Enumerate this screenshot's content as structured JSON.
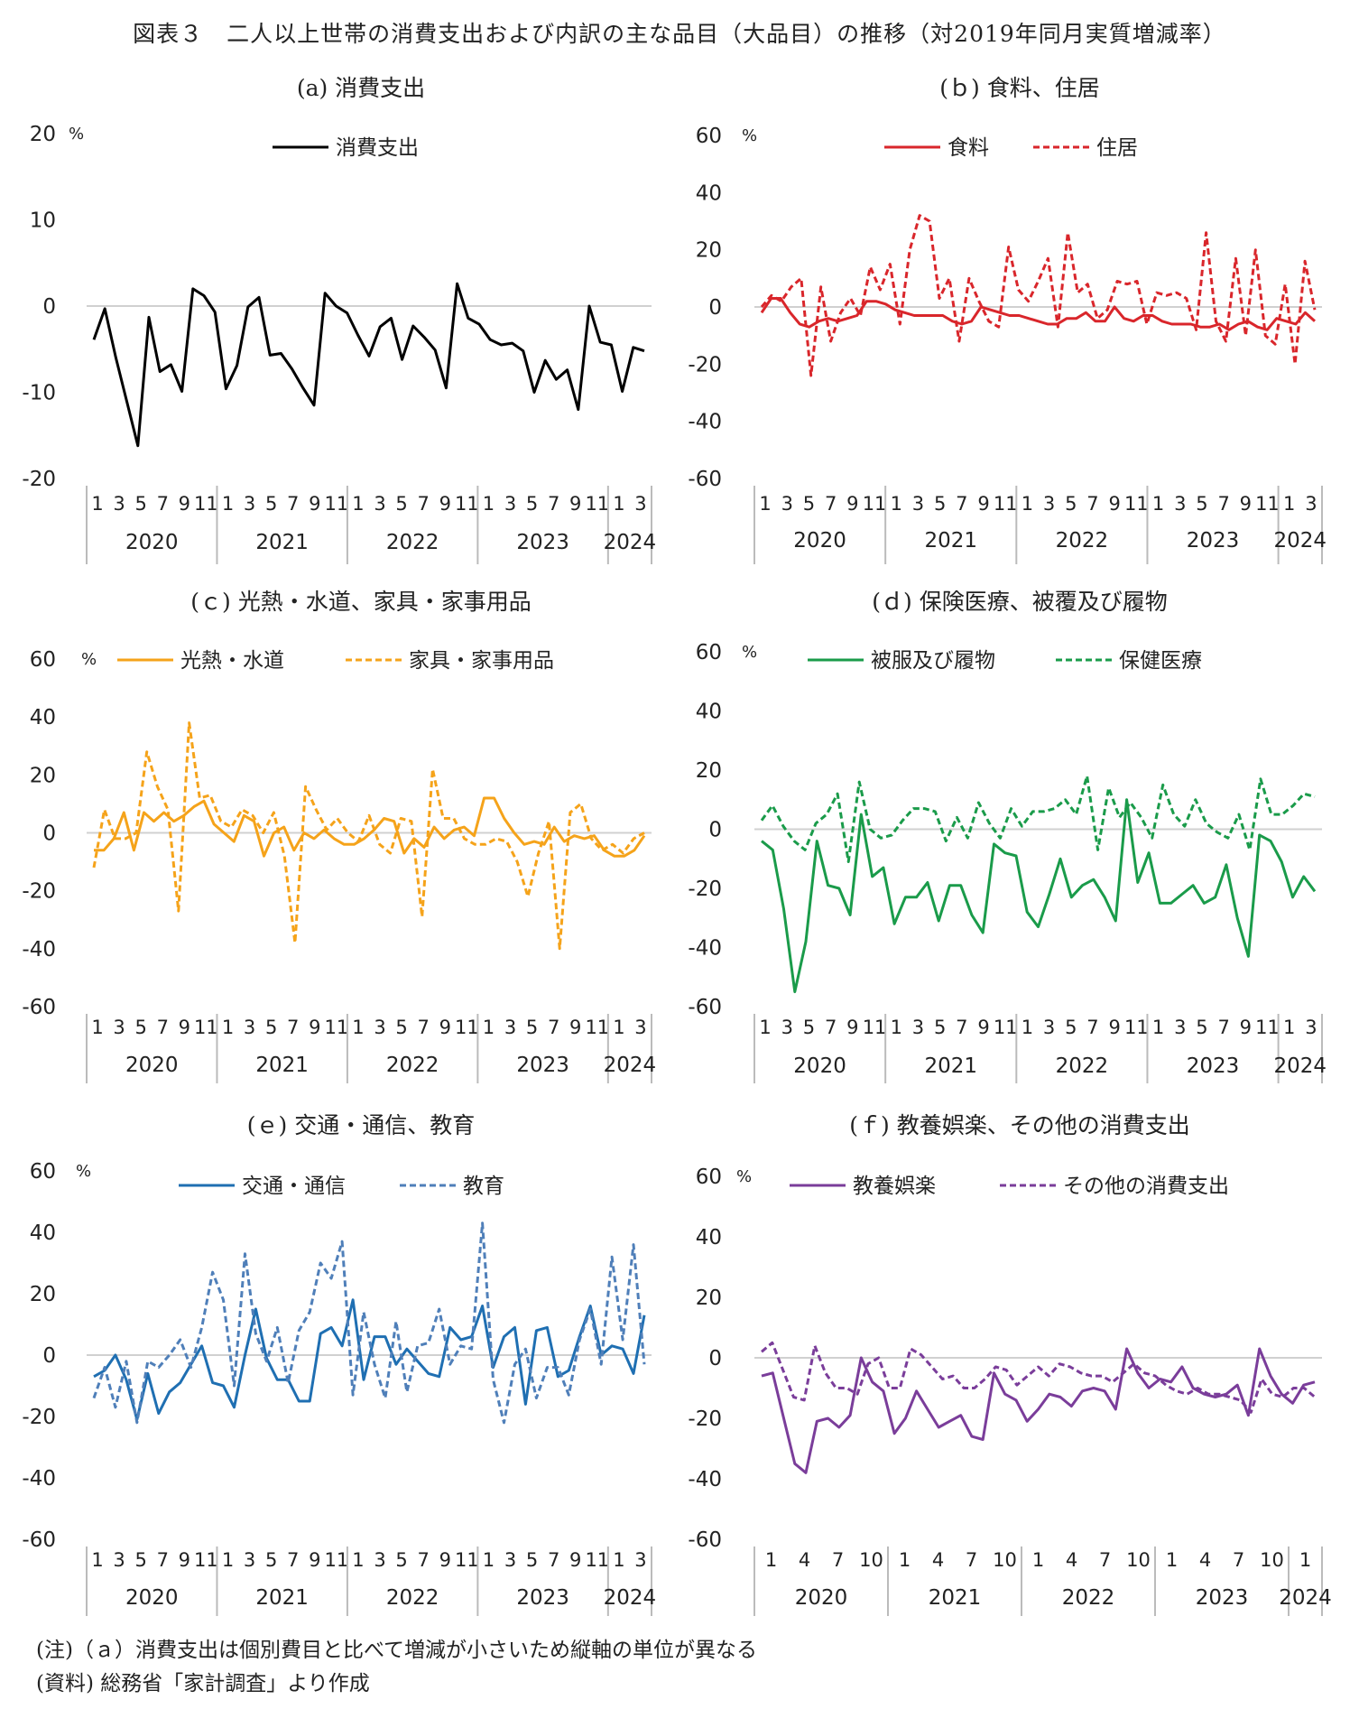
{
  "title": "図表３　二人以上世帯の消費支出および内訳の主な品目（大品目）の推移（対2019年同月実質増減率）",
  "notes": {
    "note1": "(注)（ａ）消費支出は個別費目と比べて増減が小さいため縦軸の単位が異なる",
    "note2": "(資料) 総務省「家計調査」より作成"
  },
  "chart_data": [
    {
      "panel_title": "(a) 消費支出",
      "type": "line",
      "unit": "%",
      "ylim": [
        -20,
        20
      ],
      "yticks": [
        20,
        10,
        0,
        -10,
        -20
      ],
      "xtick_labels": [
        "1",
        "3",
        "5",
        "7",
        "9",
        "11",
        "1",
        "3",
        "5",
        "7",
        "9",
        "11",
        "1",
        "3",
        "5",
        "7",
        "9",
        "11",
        "1",
        "3",
        "5",
        "7",
        "9",
        "11",
        "1",
        "3"
      ],
      "years": [
        "2020",
        "2021",
        "2022",
        "2023",
        "2024"
      ],
      "series": [
        {
          "name": "消費支出",
          "color": "#000000",
          "dash": false,
          "values": [
            -3.9,
            -0.3,
            -6.0,
            -11.1,
            -16.2,
            -1.3,
            -7.6,
            -6.8,
            -9.9,
            2.0,
            1.2,
            -0.7,
            -9.6,
            -6.9,
            -0.1,
            1.0,
            -5.7,
            -5.5,
            -7.3,
            -9.5,
            -11.5,
            1.5,
            0.0,
            -0.8,
            -3.4,
            -5.8,
            -2.4,
            -1.4,
            -6.2,
            -2.3,
            -3.6,
            -5.1,
            -9.5,
            2.6,
            -1.4,
            -2.1,
            -3.9,
            -4.5,
            -4.3,
            -5.2,
            -10.0,
            -6.3,
            -8.5,
            -7.4,
            -12.0,
            0.0,
            -4.2,
            -4.5,
            -9.9,
            -4.8,
            -5.2
          ]
        }
      ]
    },
    {
      "panel_title": "(ｂ) 食料、住居",
      "type": "line",
      "unit": "%",
      "ylim": [
        -60,
        60
      ],
      "yticks": [
        60,
        40,
        20,
        0,
        -20,
        -40,
        -60
      ],
      "xtick_labels": [
        "1",
        "3",
        "5",
        "7",
        "9",
        "11",
        "1",
        "3",
        "5",
        "7",
        "9",
        "11",
        "1",
        "3",
        "5",
        "7",
        "9",
        "11",
        "1",
        "3",
        "5",
        "7",
        "9",
        "11",
        "1",
        "3"
      ],
      "years": [
        "2020",
        "2021",
        "2022",
        "2023",
        "2024"
      ],
      "series": [
        {
          "name": "食料",
          "color": "#d9262b",
          "dash": false,
          "values": [
            -2,
            3,
            3,
            -2,
            -6,
            -7,
            -5,
            -4,
            -5,
            -4,
            -3,
            2,
            2,
            1,
            -1,
            -2,
            -3,
            -3,
            -3,
            -3,
            -5,
            -6,
            -5,
            0,
            -1,
            -2,
            -3,
            -3,
            -4,
            -5,
            -6,
            -6,
            -4,
            -4,
            -2,
            -5,
            -5,
            0,
            -4,
            -5,
            -3,
            -3,
            -5,
            -6,
            -6,
            -6,
            -7,
            -7,
            -6,
            -8,
            -6,
            -5,
            -7,
            -8,
            -4,
            -5,
            -6,
            -2,
            -5
          ]
        },
        {
          "name": "住居",
          "color": "#d9262b",
          "dash": true,
          "values": [
            0,
            4,
            2,
            7,
            10,
            -24,
            7,
            -12,
            -2,
            3,
            -3,
            14,
            6,
            15,
            -6,
            20,
            32,
            30,
            3,
            10,
            -12,
            10,
            2,
            -5,
            -7,
            21,
            6,
            2,
            9,
            17,
            -7,
            26,
            5,
            8,
            -4,
            -1,
            9,
            8,
            9,
            -6,
            5,
            4,
            5,
            3,
            -8,
            26,
            -5,
            -12,
            17,
            -10,
            20,
            -10,
            -13,
            8,
            -20,
            16,
            -1
          ]
        }
      ]
    },
    {
      "panel_title": "(ｃ) 光熱・水道、家具・家事用品",
      "type": "line",
      "unit": "%",
      "ylim": [
        -60,
        60
      ],
      "yticks": [
        60,
        40,
        20,
        0,
        -20,
        -40,
        -60
      ],
      "xtick_labels": [
        "1",
        "3",
        "5",
        "7",
        "9",
        "11",
        "1",
        "3",
        "5",
        "7",
        "9",
        "11",
        "1",
        "3",
        "5",
        "7",
        "9",
        "11",
        "1",
        "3",
        "5",
        "7",
        "9",
        "11",
        "1",
        "3"
      ],
      "years": [
        "2020",
        "2021",
        "2022",
        "2023",
        "2024"
      ],
      "series": [
        {
          "name": "光熱・水道",
          "color": "#f5a31a",
          "dash": false,
          "values": [
            -6,
            -6,
            -2,
            7,
            -6,
            7,
            4,
            7,
            4,
            6,
            9,
            11,
            3,
            0,
            -3,
            6,
            4,
            -8,
            0,
            2,
            -6,
            0,
            -2,
            1,
            -2,
            -4,
            -4,
            -2,
            1,
            5,
            4,
            -7,
            -2,
            -5,
            2,
            -2,
            1,
            2,
            -1,
            12,
            12,
            5,
            0,
            -4,
            -3,
            -4,
            2,
            -3,
            -1,
            -2,
            -1,
            -6,
            -8,
            -8,
            -6,
            -1
          ]
        },
        {
          "name": "家具・家事用品",
          "color": "#f5a31a",
          "dash": true,
          "values": [
            -12,
            8,
            -2,
            -2,
            0,
            28,
            16,
            8,
            -27,
            38,
            12,
            13,
            4,
            2,
            8,
            6,
            0,
            7,
            -8,
            -38,
            16,
            8,
            1,
            5,
            0,
            -3,
            6,
            -4,
            -7,
            5,
            4,
            -29,
            22,
            5,
            5,
            -2,
            -4,
            -4,
            -2,
            -3,
            -10,
            -22,
            -7,
            4,
            -40,
            7,
            10,
            -2,
            -6,
            -4,
            -7,
            -2,
            0
          ]
        }
      ]
    },
    {
      "panel_title": "(ｄ) 保険医療、被覆及び履物",
      "type": "line",
      "unit": "%",
      "ylim": [
        -60,
        60
      ],
      "yticks": [
        60,
        40,
        20,
        0,
        -20,
        -40,
        -60
      ],
      "xtick_labels": [
        "1",
        "3",
        "5",
        "7",
        "9",
        "11",
        "1",
        "3",
        "5",
        "7",
        "9",
        "11",
        "1",
        "3",
        "5",
        "7",
        "9",
        "11",
        "1",
        "3",
        "5",
        "7",
        "9",
        "11",
        "1",
        "3"
      ],
      "years": [
        "2020",
        "2021",
        "2022",
        "2023",
        "2024"
      ],
      "series": [
        {
          "name": "被服及び履物",
          "color": "#1a9b4a",
          "dash": false,
          "values": [
            -4,
            -7,
            -27,
            -55,
            -38,
            -4,
            -19,
            -20,
            -29,
            5,
            -16,
            -13,
            -32,
            -23,
            -23,
            -18,
            -31,
            -19,
            -19,
            -29,
            -35,
            -5,
            -8,
            -9,
            -28,
            -33,
            -22,
            -10,
            -23,
            -19,
            -17,
            -23,
            -31,
            10,
            -18,
            -8,
            -25,
            -25,
            -22,
            -19,
            -25,
            -23,
            -12,
            -30,
            -43,
            -2,
            -4,
            -11,
            -23,
            -16,
            -21
          ]
        },
        {
          "name": "保健医療",
          "color": "#1a9b4a",
          "dash": true,
          "values": [
            3,
            8,
            1,
            -4,
            -7,
            2,
            5,
            12,
            -11,
            16,
            0,
            -3,
            -2,
            3,
            7,
            7,
            6,
            -4,
            4,
            -3,
            9,
            2,
            -3,
            7,
            1,
            6,
            6,
            7,
            10,
            5,
            18,
            -7,
            14,
            4,
            9,
            4,
            -3,
            15,
            5,
            1,
            10,
            2,
            -1,
            -3,
            5,
            -7,
            17,
            5,
            5,
            8,
            12,
            11
          ]
        }
      ]
    },
    {
      "panel_title": "(ｅ) 交通・通信、教育",
      "type": "line",
      "unit": "%",
      "ylim": [
        -60,
        60
      ],
      "yticks": [
        60,
        40,
        20,
        0,
        -20,
        -40,
        -60
      ],
      "xtick_labels": [
        "1",
        "3",
        "5",
        "7",
        "9",
        "11",
        "1",
        "3",
        "5",
        "7",
        "9",
        "11",
        "1",
        "3",
        "5",
        "7",
        "9",
        "11",
        "1",
        "3",
        "5",
        "7",
        "9",
        "11",
        "1",
        "3"
      ],
      "years": [
        "2020",
        "2021",
        "2022",
        "2023",
        "2024"
      ],
      "series": [
        {
          "name": "交通・通信",
          "color": "#1f6fb2",
          "dash": false,
          "values": [
            -7,
            -5,
            0,
            -8,
            -21,
            -6,
            -19,
            -12,
            -9,
            -3,
            3,
            -9,
            -10,
            -17,
            0,
            15,
            -1,
            -8,
            -8,
            -15,
            -15,
            7,
            9,
            3,
            18,
            -8,
            6,
            6,
            -3,
            2,
            -2,
            -6,
            -7,
            9,
            5,
            6,
            16,
            -4,
            6,
            9,
            -16,
            8,
            9,
            -7,
            -5,
            6,
            16,
            0,
            3,
            2,
            -6,
            13
          ]
        },
        {
          "name": "教育",
          "color": "#4f7fb9",
          "dash": true,
          "values": [
            -14,
            -4,
            -17,
            -2,
            -22,
            -2,
            -4,
            0,
            5,
            -4,
            9,
            27,
            18,
            -10,
            33,
            7,
            -2,
            9,
            -9,
            8,
            14,
            30,
            25,
            37,
            -13,
            14,
            -3,
            -14,
            11,
            -12,
            3,
            4,
            15,
            -3,
            3,
            2,
            43,
            -8,
            -22,
            -3,
            2,
            -14,
            -4,
            -4,
            -13,
            5,
            15,
            -3,
            32,
            5,
            36,
            -3
          ]
        }
      ]
    },
    {
      "panel_title": "(ｆ) 教養娯楽、その他の消費支出",
      "type": "line",
      "unit": "%",
      "ylim": [
        -60,
        60
      ],
      "yticks": [
        60,
        40,
        20,
        0,
        -20,
        -40,
        -60
      ],
      "xtick_labels": [
        "1",
        "4",
        "7",
        "10",
        "1",
        "4",
        "7",
        "10",
        "1",
        "4",
        "7",
        "10",
        "1",
        "4",
        "7",
        "10",
        "1"
      ],
      "years": [
        "2020",
        "2021",
        "2022",
        "2023",
        "2024"
      ],
      "series": [
        {
          "name": "教養娯楽",
          "color": "#7a3d9a",
          "dash": false,
          "values": [
            -6,
            -5,
            -20,
            -35,
            -38,
            -21,
            -20,
            -23,
            -19,
            0,
            -8,
            -11,
            -25,
            -20,
            -11,
            -17,
            -23,
            -21,
            -19,
            -26,
            -27,
            -5,
            -12,
            -14,
            -21,
            -17,
            -12,
            -13,
            -16,
            -11,
            -10,
            -11,
            -17,
            3,
            -5,
            -10,
            -7,
            -8,
            -3,
            -10,
            -12,
            -13,
            -12,
            -9,
            -19,
            3,
            -6,
            -12,
            -15,
            -9,
            -8
          ]
        },
        {
          "name": "その他の消費支出",
          "color": "#7a3d9a",
          "dash": true,
          "values": [
            2,
            5,
            -4,
            -13,
            -14,
            4,
            -5,
            -10,
            -10,
            -12,
            -2,
            0,
            -10,
            -10,
            3,
            1,
            -3,
            -7,
            -6,
            -10,
            -10,
            -7,
            -3,
            -4,
            -9,
            -6,
            -3,
            -6,
            -2,
            -3,
            -5,
            -6,
            -6,
            -8,
            -5,
            -2,
            -5,
            -6,
            -9,
            -11,
            -12,
            -10,
            -12,
            -12,
            -13,
            -14,
            -18,
            -7,
            -12,
            -13,
            -10,
            -10,
            -13
          ]
        }
      ]
    }
  ]
}
